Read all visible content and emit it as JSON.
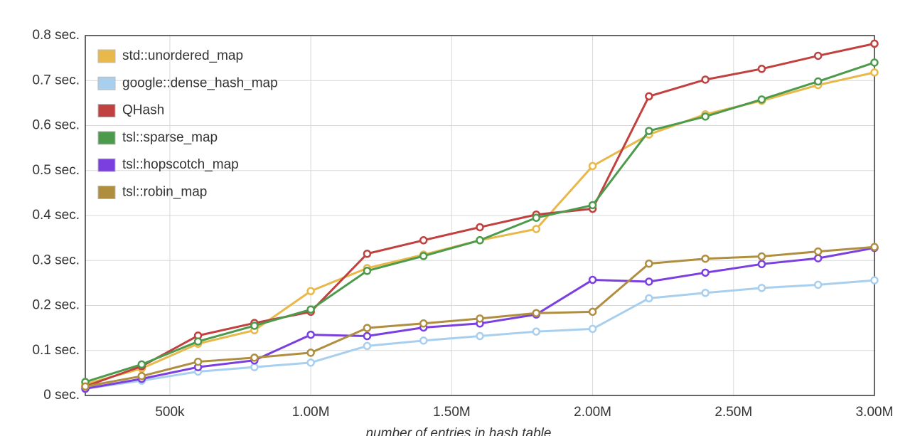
{
  "chart_data": {
    "type": "line",
    "x_label": "number of entries in hash table",
    "x": [
      200000,
      400000,
      600000,
      800000,
      1000000,
      1200000,
      1400000,
      1600000,
      1800000,
      2000000,
      2200000,
      2400000,
      2600000,
      2800000,
      3000000
    ],
    "xlim": [
      200000,
      3000000
    ],
    "xticks": [
      {
        "value": 500000,
        "label": "500k"
      },
      {
        "value": 1000000,
        "label": "1.00M"
      },
      {
        "value": 1500000,
        "label": "1.50M"
      },
      {
        "value": 2000000,
        "label": "2.00M"
      },
      {
        "value": 2500000,
        "label": "2.50M"
      },
      {
        "value": 3000000,
        "label": "3.00M"
      }
    ],
    "ylim": [
      0,
      0.8
    ],
    "yticks": [
      {
        "value": 0,
        "label": "0 sec."
      },
      {
        "value": 0.1,
        "label": "0.1 sec."
      },
      {
        "value": 0.2,
        "label": "0.2 sec."
      },
      {
        "value": 0.3,
        "label": "0.3 sec."
      },
      {
        "value": 0.4,
        "label": "0.4 sec."
      },
      {
        "value": 0.5,
        "label": "0.5 sec."
      },
      {
        "value": 0.6,
        "label": "0.6 sec."
      },
      {
        "value": 0.7,
        "label": "0.7 sec."
      },
      {
        "value": 0.8,
        "label": "0.8 sec."
      }
    ],
    "grid": true,
    "legend": "top-left",
    "series": [
      {
        "name": "std::unordered_map",
        "color": "#e8b84a",
        "values": [
          0.025,
          0.06,
          0.115,
          0.145,
          0.232,
          0.283,
          0.313,
          0.345,
          0.37,
          0.51,
          0.58,
          0.625,
          0.655,
          0.69,
          0.718
        ]
      },
      {
        "name": "google::dense_hash_map",
        "color": "#a9cfee",
        "values": [
          0.015,
          0.033,
          0.053,
          0.063,
          0.073,
          0.11,
          0.122,
          0.132,
          0.142,
          0.148,
          0.216,
          0.228,
          0.239,
          0.246,
          0.256
        ]
      },
      {
        "name": "QHash",
        "color": "#c0413f",
        "values": [
          0.02,
          0.065,
          0.133,
          0.161,
          0.186,
          0.315,
          0.345,
          0.374,
          0.402,
          0.415,
          0.665,
          0.702,
          0.726,
          0.755,
          0.782
        ]
      },
      {
        "name": "tsl::sparse_map",
        "color": "#4c9a4c",
        "values": [
          0.03,
          0.069,
          0.12,
          0.155,
          0.191,
          0.277,
          0.31,
          0.345,
          0.395,
          0.423,
          0.588,
          0.62,
          0.658,
          0.698,
          0.74
        ]
      },
      {
        "name": "tsl::hopscotch_map",
        "color": "#7b3fe0",
        "values": [
          0.015,
          0.037,
          0.063,
          0.078,
          0.135,
          0.132,
          0.151,
          0.16,
          0.18,
          0.257,
          0.253,
          0.273,
          0.292,
          0.305,
          0.328
        ]
      },
      {
        "name": "tsl::robin_map",
        "color": "#b08e40",
        "values": [
          0.02,
          0.043,
          0.075,
          0.084,
          0.095,
          0.15,
          0.16,
          0.171,
          0.183,
          0.186,
          0.293,
          0.304,
          0.309,
          0.32,
          0.33
        ]
      }
    ]
  }
}
